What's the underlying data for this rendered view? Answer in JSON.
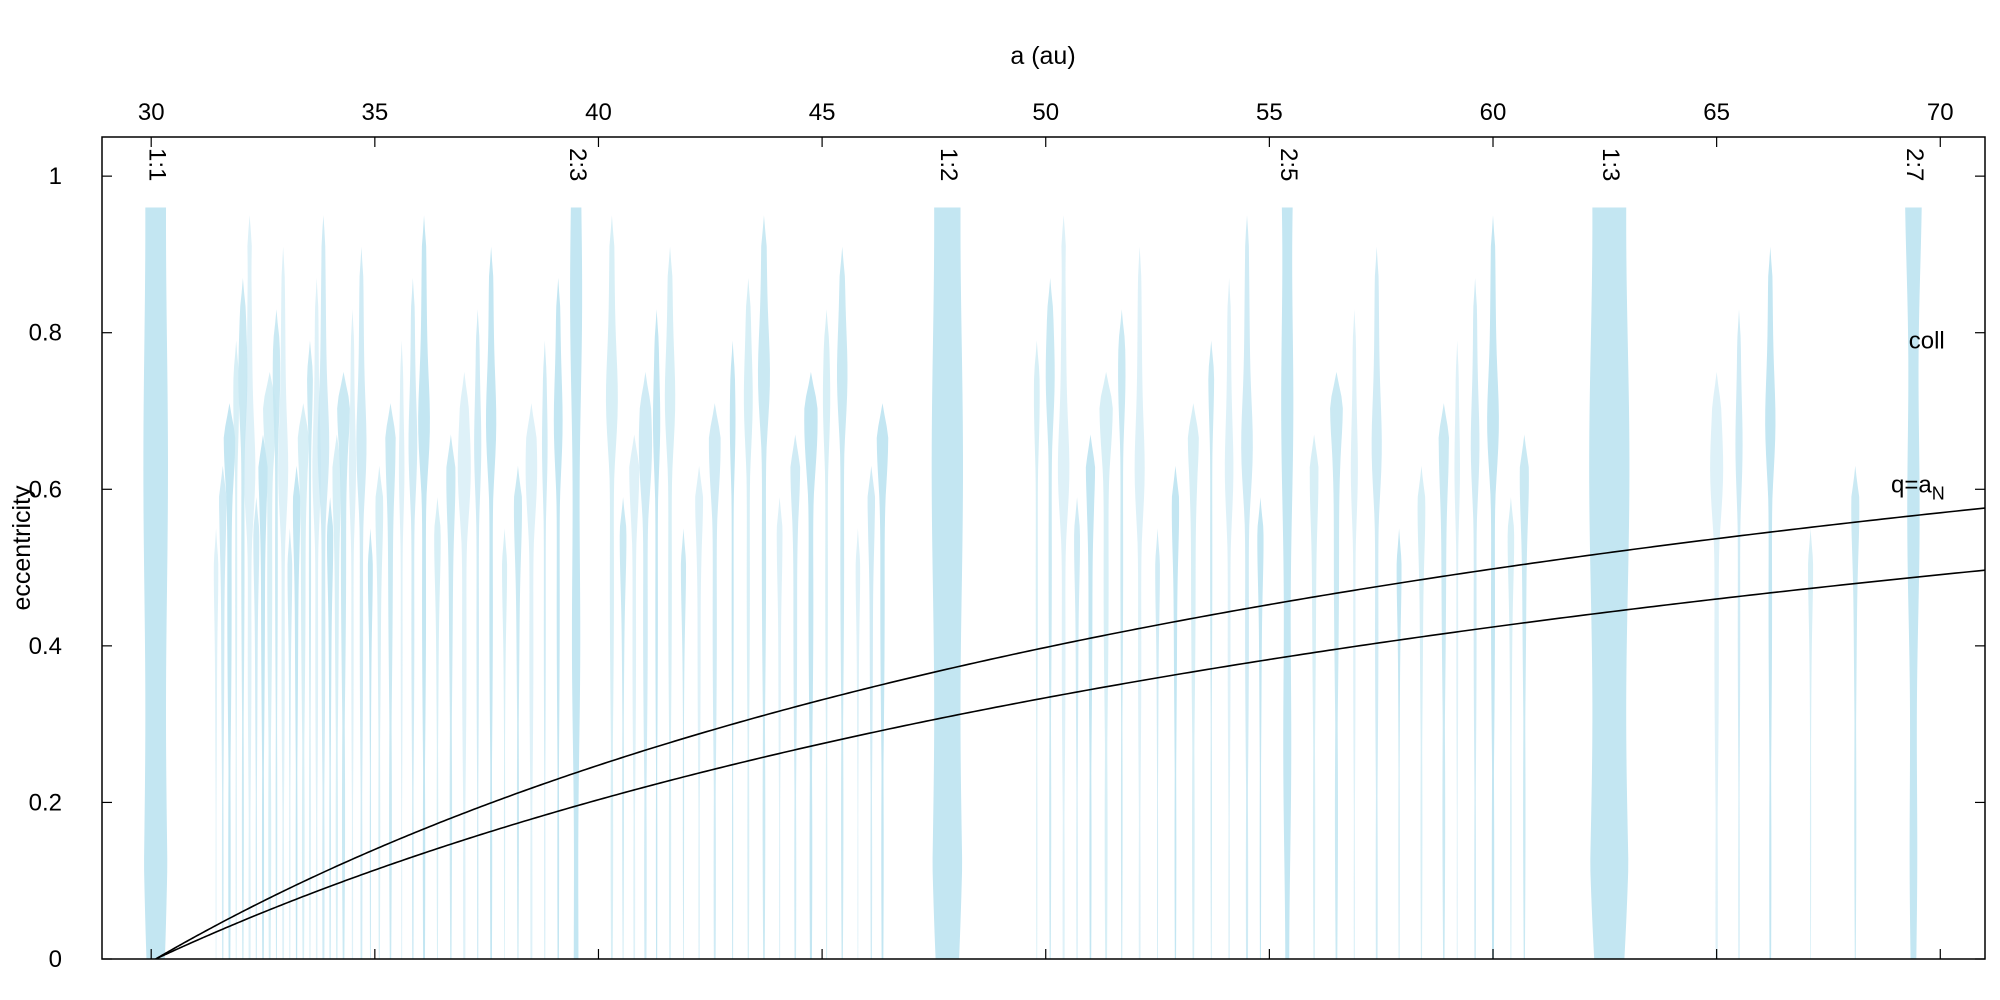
{
  "chart_data": {
    "type": "area",
    "xlabel": "a (au)",
    "ylabel": "eccentricity",
    "xlim": [
      28.9,
      71.0
    ],
    "ylim": [
      0,
      1.05
    ],
    "x_ticks": [
      30,
      35,
      40,
      45,
      50,
      55,
      60,
      65,
      70
    ],
    "y_ticks": [
      0,
      0.2,
      0.4,
      0.6,
      0.8,
      1
    ],
    "y_tick_labels": [
      "0",
      "0.2",
      "0.4",
      "0.6",
      "0.8",
      "1"
    ],
    "grid": false,
    "colors": {
      "resonance_fill": "#c3e6f2",
      "curve": "#000000",
      "axis": "#000000"
    },
    "neptune_a": 30.1,
    "named_resonances": [
      {
        "label": "1:1",
        "a": 30.1,
        "width": 0.55,
        "emax": 0.96,
        "shape": "column"
      },
      {
        "label": "2:3",
        "a": 39.5,
        "width": 0.25,
        "emax": 0.96,
        "shape": "tapered"
      },
      {
        "label": "1:2",
        "a": 47.8,
        "width": 0.7,
        "emax": 0.96,
        "shape": "column"
      },
      {
        "label": "2:5",
        "a": 55.4,
        "width": 0.28,
        "emax": 0.96,
        "shape": "tapered"
      },
      {
        "label": "1:3",
        "a": 62.6,
        "width": 0.9,
        "emax": 0.96,
        "shape": "column"
      },
      {
        "label": "2:7",
        "a": 69.4,
        "width": 0.32,
        "emax": 0.96,
        "shape": "tapered"
      }
    ],
    "minor_resonances": [
      31.45,
      31.6,
      31.75,
      31.9,
      32.05,
      32.2,
      32.35,
      32.5,
      32.65,
      32.8,
      32.95,
      33.1,
      33.25,
      33.4,
      33.55,
      33.7,
      33.85,
      34.0,
      34.15,
      34.3,
      34.5,
      34.7,
      34.9,
      35.1,
      35.35,
      35.6,
      35.85,
      36.1,
      36.4,
      36.7,
      37.0,
      37.3,
      37.6,
      37.9,
      38.2,
      38.5,
      38.8,
      39.1,
      40.3,
      40.55,
      40.8,
      41.05,
      41.3,
      41.6,
      41.9,
      42.25,
      42.6,
      43.0,
      43.35,
      43.7,
      44.05,
      44.4,
      44.75,
      45.1,
      45.45,
      45.8,
      46.1,
      46.35,
      49.8,
      50.1,
      50.4,
      50.7,
      51.0,
      51.35,
      51.7,
      52.1,
      52.5,
      52.9,
      53.3,
      53.7,
      54.1,
      54.5,
      54.8,
      56.0,
      56.5,
      56.9,
      57.4,
      57.9,
      58.4,
      58.9,
      59.2,
      59.6,
      60.0,
      60.4,
      60.7,
      65.0,
      65.5,
      66.2,
      67.1,
      68.1
    ],
    "curves": [
      {
        "name": "coll",
        "label": "coll",
        "formula": "e = 1 - a_N / a",
        "aN": 30.1
      },
      {
        "name": "q=aN",
        "label_main": "q=a",
        "label_sub": "N",
        "formula": "e = 1 - (a_N / a)^0.75 (approx)",
        "aN": 30.1
      }
    ]
  }
}
